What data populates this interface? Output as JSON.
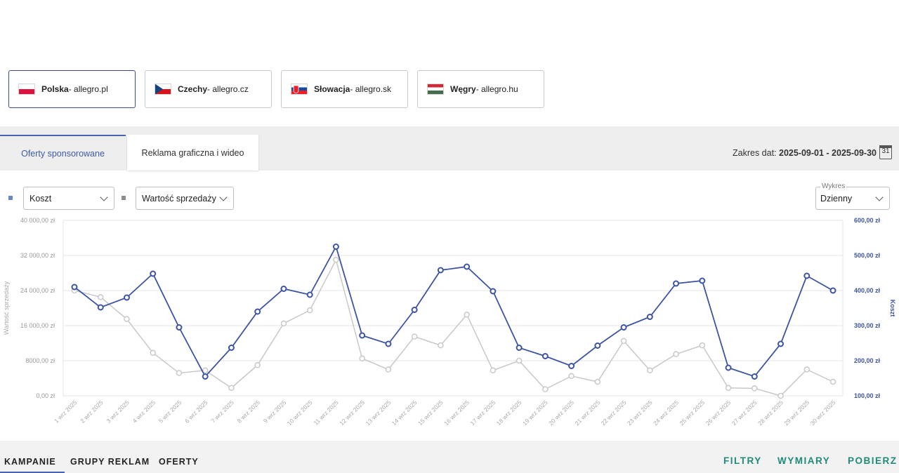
{
  "markets": [
    {
      "country": "Polska",
      "domain": " - allegro.pl",
      "flag": "flag-pl",
      "active": true
    },
    {
      "country": "Czechy",
      "domain": " - allegro.cz",
      "flag": "flag-cz",
      "active": false
    },
    {
      "country": "Słowacja",
      "domain": " - allegro.sk",
      "flag": "flag-sk",
      "active": false
    },
    {
      "country": "Węgry",
      "domain": " - allegro.hu",
      "flag": "flag-hu",
      "active": false
    }
  ],
  "tabs": {
    "sponsored": "Oferty sponsorowane",
    "display": "Reklama graficzna i wideo"
  },
  "date_range": {
    "label": "Zakres dat: ",
    "value": "2025-09-01 - 2025-09-30",
    "calendar_day": "31"
  },
  "controls": {
    "metric1": "Koszt",
    "metric2": "Wartość sprzedaży",
    "chart_mode_legend": "Wykres",
    "chart_mode": "Dzienny",
    "metric1_color": "#6c86c8",
    "metric2_color": "#9a9a9a"
  },
  "chart_data": {
    "type": "line",
    "categories": [
      "1 wrz 2025",
      "2 wrz 2025",
      "3 wrz 2025",
      "4 wrz 2025",
      "5 wrz 2025",
      "6 wrz 2025",
      "7 wrz 2025",
      "8 wrz 2025",
      "9 wrz 2025",
      "10 wrz 2025",
      "11 wrz 2025",
      "12 wrz 2025",
      "13 wrz 2025",
      "14 wrz 2025",
      "15 wrz 2025",
      "16 wrz 2025",
      "17 wrz 2025",
      "18 wrz 2025",
      "19 wrz 2025",
      "20 wrz 2025",
      "21 wrz 2025",
      "22 wrz 2025",
      "23 wrz 2025",
      "24 wrz 2025",
      "25 wrz 2025",
      "26 wrz 2025",
      "27 wrz 2025",
      "28 wrz 2025",
      "29 wrz 2025",
      "30 wrz 2025"
    ],
    "series": [
      {
        "name": "Koszt",
        "axis": "right",
        "color": "#3d54a3",
        "values": [
          410,
          352,
          380,
          448,
          295,
          155,
          237,
          340,
          405,
          388,
          525,
          272,
          248,
          345,
          458,
          468,
          398,
          237,
          213,
          185,
          243,
          295,
          325,
          420,
          428,
          180,
          155,
          248,
          442,
          400
        ]
      },
      {
        "name": "Wartość sprzedaży",
        "axis": "left",
        "color": "#c8c8c8",
        "values": [
          24000,
          22500,
          17500,
          9800,
          5200,
          5800,
          1800,
          7000,
          16500,
          19500,
          31000,
          8500,
          6000,
          13500,
          11500,
          18500,
          5800,
          8000,
          1500,
          4500,
          3200,
          12500,
          5800,
          9500,
          11500,
          1800,
          1700,
          0,
          6000,
          3200
        ]
      }
    ],
    "ylabel_left": "Wartość sprzedaży",
    "ylabel_right": "Koszt",
    "ylim_left": [
      0,
      40000
    ],
    "ylim_right": [
      100,
      600
    ],
    "yticks_left": [
      "0,00 zł",
      "8000,00 zł",
      "16 000,00 zł",
      "24 000,00 zł",
      "32 000,00 zł",
      "40 000,00 zł"
    ],
    "yticks_right": [
      "100,00 zł",
      "200,00 zł",
      "300,00 zł",
      "400,00 zł",
      "500,00 zł",
      "600,00 zł"
    ],
    "grid": true
  },
  "bottom_tabs": [
    "KAMPANIE",
    "GRUPY REKLAM",
    "OFERTY"
  ],
  "actions": [
    "FILTRY",
    "WYMIARY",
    "POBIERZ"
  ]
}
